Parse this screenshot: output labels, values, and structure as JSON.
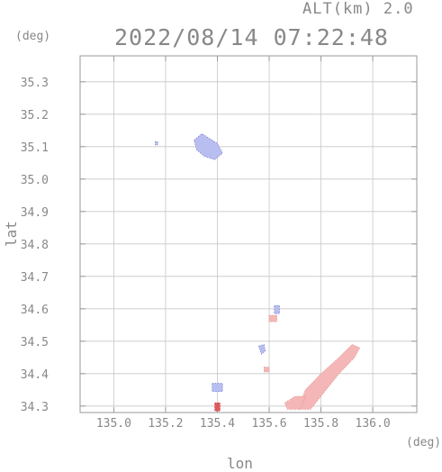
{
  "header": {
    "altitude_label": "ALT(km) 2.0",
    "timestamp": "2022/08/14 07:22:48"
  },
  "units": {
    "y_unit": "(deg)",
    "x_unit": "(deg)"
  },
  "chart_data": {
    "type": "heatmap",
    "title": "2022/08/14 07:22:48",
    "subtitle": "ALT(km) 2.0",
    "xlabel": "lon",
    "ylabel": "lat",
    "xlim": [
      134.87,
      136.17
    ],
    "ylim": [
      34.28,
      35.38
    ],
    "xticks": [
      135.0,
      135.2,
      135.4,
      135.6,
      135.8,
      136.0
    ],
    "yticks": [
      34.3,
      34.4,
      34.5,
      34.6,
      34.7,
      34.8,
      34.9,
      35.0,
      35.1,
      35.2,
      35.3
    ],
    "xtick_labels": [
      "135.0",
      "135.2",
      "135.4",
      "135.6",
      "135.8",
      "136.0"
    ],
    "ytick_labels": [
      "34.3",
      "34.4",
      "34.5",
      "34.6",
      "34.7",
      "34.8",
      "34.9",
      "35.0",
      "35.1",
      "35.2",
      "35.3"
    ],
    "grid": true,
    "colors": {
      "negative": "#b8bef0",
      "positive": "#f4b6b6",
      "strong_positive": "#e05a5a",
      "frame": "#c8c8c8",
      "tick_text": "#888888"
    },
    "echo_regions": [
      {
        "sign": "negative",
        "polygon": [
          [
            135.31,
            35.12
          ],
          [
            135.34,
            35.14
          ],
          [
            135.4,
            35.11
          ],
          [
            135.42,
            35.08
          ],
          [
            135.39,
            35.06
          ],
          [
            135.35,
            35.07
          ],
          [
            135.32,
            35.09
          ]
        ]
      },
      {
        "sign": "negative",
        "polygon": [
          [
            135.16,
            35.115
          ],
          [
            135.17,
            35.115
          ],
          [
            135.17,
            35.105
          ],
          [
            135.16,
            35.105
          ]
        ]
      },
      {
        "sign": "negative",
        "polygon": [
          [
            135.38,
            34.37
          ],
          [
            135.42,
            34.37
          ],
          [
            135.42,
            34.345
          ],
          [
            135.38,
            34.345
          ]
        ]
      },
      {
        "sign": "negative",
        "polygon": [
          [
            135.56,
            34.485
          ],
          [
            135.58,
            34.49
          ],
          [
            135.585,
            34.47
          ],
          [
            135.57,
            34.46
          ]
        ]
      },
      {
        "sign": "negative",
        "polygon": [
          [
            135.62,
            34.61
          ],
          [
            135.64,
            34.61
          ],
          [
            135.64,
            34.585
          ],
          [
            135.62,
            34.585
          ]
        ]
      },
      {
        "sign": "positive",
        "polygon": [
          [
            135.71,
            34.29
          ],
          [
            135.74,
            34.35
          ],
          [
            135.8,
            34.4
          ],
          [
            135.87,
            34.45
          ],
          [
            135.92,
            34.49
          ],
          [
            135.95,
            34.48
          ],
          [
            135.93,
            34.45
          ],
          [
            135.87,
            34.4
          ],
          [
            135.81,
            34.34
          ],
          [
            135.76,
            34.29
          ]
        ]
      },
      {
        "sign": "positive",
        "polygon": [
          [
            135.66,
            34.31
          ],
          [
            135.7,
            34.33
          ],
          [
            135.74,
            34.33
          ],
          [
            135.72,
            34.29
          ],
          [
            135.67,
            34.29
          ]
        ]
      },
      {
        "sign": "positive",
        "polygon": [
          [
            135.6,
            34.58
          ],
          [
            135.63,
            34.58
          ],
          [
            135.63,
            34.56
          ],
          [
            135.6,
            34.56
          ]
        ]
      },
      {
        "sign": "strong_positive",
        "polygon": [
          [
            135.39,
            34.31
          ],
          [
            135.41,
            34.31
          ],
          [
            135.41,
            34.285
          ],
          [
            135.39,
            34.285
          ]
        ]
      },
      {
        "sign": "positive",
        "polygon": [
          [
            135.58,
            34.42
          ],
          [
            135.6,
            34.42
          ],
          [
            135.6,
            34.405
          ],
          [
            135.58,
            34.405
          ]
        ]
      }
    ]
  }
}
